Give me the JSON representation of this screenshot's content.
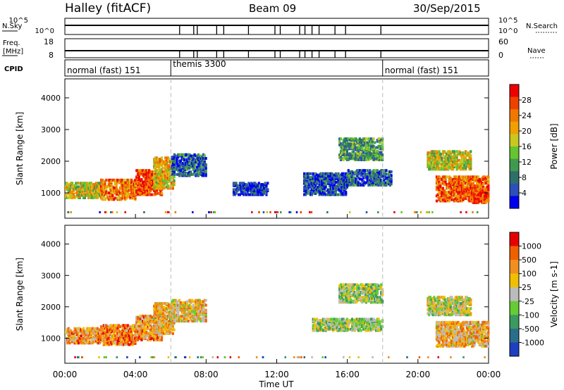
{
  "header": {
    "station": "Halley (fitACF)",
    "beam": "Beam 09",
    "date": "30/Sep/2015"
  },
  "side_labels": {
    "nsky": "N.Sky",
    "freq": "Freq.",
    "freq_unit": "[MHz]",
    "cpid": "CPID",
    "nsearch": "N.Search",
    "nave": "Nave"
  },
  "noise_axes": {
    "left_ticks": [
      "10^5",
      "10^0"
    ],
    "right_ticks": [
      "10^5",
      "10^0"
    ]
  },
  "freq_axes": {
    "left_ticks": [
      "18",
      "8"
    ],
    "right_ticks": [
      "60",
      "0"
    ]
  },
  "cpid_segments": [
    {
      "label": "normal (fast) 151",
      "start": 0.0,
      "end": 6.0
    },
    {
      "label": "themis 3300",
      "start": 6.0,
      "end": 18.0
    },
    {
      "label": "normal (fast) 151",
      "start": 18.0,
      "end": 24.0
    }
  ],
  "noise_dropouts": [
    6.5,
    7.3,
    7.5,
    8.6,
    9.0,
    10.4,
    11.9,
    12.2,
    13.3,
    13.6,
    14.0,
    14.4,
    15.3,
    15.9,
    17.9
  ],
  "chart_data": [
    {
      "type": "heatmap",
      "name": "power",
      "ylabel": "Slant Range [km]",
      "xlabel": "",
      "xlim": [
        0,
        24
      ],
      "ylim": [
        200,
        4600
      ],
      "yticks": [
        1000,
        2000,
        3000,
        4000
      ],
      "ytick_labels": [
        "1000",
        "2000",
        "3000",
        "4000"
      ],
      "colorbar": {
        "label": "Power [dB]",
        "ticks": [
          "28",
          "24",
          "20",
          "16",
          "12",
          "8",
          "4"
        ],
        "colors": [
          "#0000ee",
          "#2c4fb8",
          "#2f6f6a",
          "#3f9a4f",
          "#66c430",
          "#c8c820",
          "#f0a000",
          "#f07800",
          "#f04000",
          "#ee0000"
        ]
      },
      "regions": [
        {
          "x0": 0.0,
          "x1": 2.0,
          "y0": 800,
          "y1": 1300,
          "level": 0.55
        },
        {
          "x0": 2.0,
          "x1": 4.0,
          "y0": 750,
          "y1": 1400,
          "level": 0.75
        },
        {
          "x0": 4.0,
          "x1": 5.5,
          "y0": 900,
          "y1": 1700,
          "level": 0.85
        },
        {
          "x0": 5.0,
          "x1": 6.2,
          "y0": 1100,
          "y1": 2100,
          "level": 0.6
        },
        {
          "x0": 6.0,
          "x1": 8.0,
          "y0": 1500,
          "y1": 2200,
          "level": 0.2
        },
        {
          "x0": 9.5,
          "x1": 11.5,
          "y0": 900,
          "y1": 1300,
          "level": 0.1
        },
        {
          "x0": 13.5,
          "x1": 16.0,
          "y0": 900,
          "y1": 1600,
          "level": 0.15
        },
        {
          "x0": 15.5,
          "x1": 18.0,
          "y0": 2000,
          "y1": 2700,
          "level": 0.35
        },
        {
          "x0": 16.0,
          "x1": 18.5,
          "y0": 1200,
          "y1": 1700,
          "level": 0.2
        },
        {
          "x0": 20.5,
          "x1": 23.0,
          "y0": 1700,
          "y1": 2300,
          "level": 0.55
        },
        {
          "x0": 21.0,
          "x1": 24.0,
          "y0": 700,
          "y1": 1500,
          "level": 0.8
        },
        {
          "x0": 23.0,
          "x1": 24.0,
          "y0": 650,
          "y1": 1100,
          "level": 0.85
        }
      ]
    },
    {
      "type": "heatmap",
      "name": "velocity",
      "ylabel": "Slant Range [km]",
      "xlabel": "Time UT",
      "xlim": [
        0,
        24
      ],
      "ylim": [
        200,
        4600
      ],
      "yticks": [
        1000,
        2000,
        3000,
        4000
      ],
      "ytick_labels": [
        "1000",
        "2000",
        "3000",
        "4000"
      ],
      "xticks": [
        0,
        4,
        8,
        12,
        16,
        20,
        24
      ],
      "xtick_labels": [
        "00:00",
        "04:00",
        "08:00",
        "12:00",
        "16:00",
        "20:00",
        "00:00"
      ],
      "colorbar": {
        "label": "Velocity [m s-1]",
        "ticks": [
          "1000",
          "500",
          "100",
          "25",
          "-25",
          "-100",
          "-500",
          "-1000"
        ],
        "colors": [
          "#1f3fc0",
          "#2a6e8a",
          "#3a9a60",
          "#66cc33",
          "#bbbbbb",
          "#f0c000",
          "#f09020",
          "#f06000",
          "#e80000"
        ]
      },
      "regions": [
        {
          "x0": 0.0,
          "x1": 2.0,
          "y0": 800,
          "y1": 1300,
          "level": 0.7
        },
        {
          "x0": 2.0,
          "x1": 4.0,
          "y0": 750,
          "y1": 1400,
          "level": 0.75
        },
        {
          "x0": 4.0,
          "x1": 5.5,
          "y0": 900,
          "y1": 1700,
          "level": 0.7
        },
        {
          "x0": 5.0,
          "x1": 6.2,
          "y0": 1100,
          "y1": 2100,
          "level": 0.65
        },
        {
          "x0": 6.0,
          "x1": 8.0,
          "y0": 1500,
          "y1": 2200,
          "level": 0.6
        },
        {
          "x0": 15.5,
          "x1": 18.0,
          "y0": 2100,
          "y1": 2700,
          "level": 0.45
        },
        {
          "x0": 14.0,
          "x1": 18.0,
          "y0": 1200,
          "y1": 1600,
          "level": 0.45
        },
        {
          "x0": 20.5,
          "x1": 23.0,
          "y0": 1700,
          "y1": 2300,
          "level": 0.5
        },
        {
          "x0": 21.0,
          "x1": 24.0,
          "y0": 700,
          "y1": 1500,
          "level": 0.65
        }
      ]
    }
  ]
}
